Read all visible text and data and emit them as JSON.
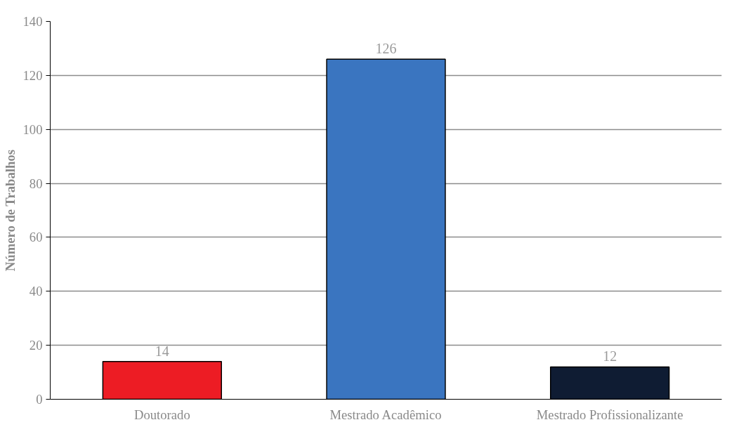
{
  "chart_data": {
    "type": "bar",
    "ylabel": "Número de Trabalhos",
    "categories": [
      "Doutorado",
      "Mestrado Acadêmico",
      "Mestrado Profissionalizante"
    ],
    "values": [
      14,
      126,
      12
    ],
    "colors": [
      "#ed1c24",
      "#3a75c0",
      "#0f1c33"
    ],
    "ylim": [
      0,
      140
    ],
    "yticks": [
      0,
      20,
      40,
      60,
      80,
      100,
      120,
      140
    ],
    "grid": "y",
    "data_labels": true
  }
}
